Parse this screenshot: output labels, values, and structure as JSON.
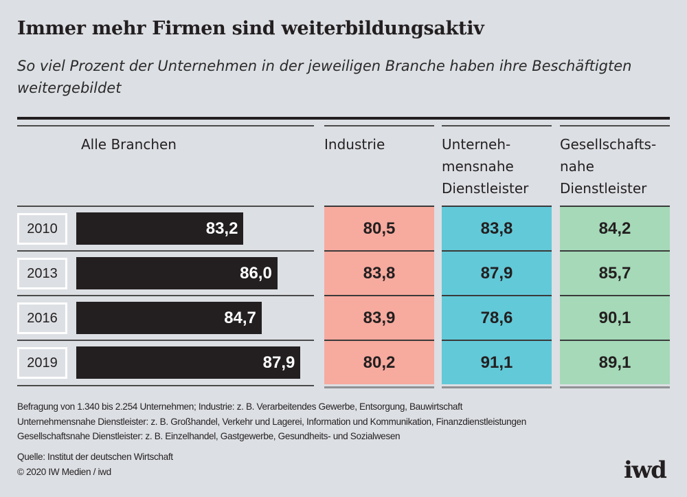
{
  "title": "Immer mehr Firmen sind weiterbildungsaktiv",
  "subtitle": "So viel Prozent der Unternehmen in der jeweiligen Branche haben ihre Beschäftigten weitergebildet",
  "colors": {
    "background": "#dcdfe3",
    "bar": "#231f20",
    "industrie": "#f7aa9e",
    "unternehmensnahe": "#62c9d8",
    "gesellschaftsnahe": "#a5d9b8"
  },
  "chart_data": {
    "type": "table",
    "categories": [
      "2010",
      "2013",
      "2016",
      "2019"
    ],
    "columns": [
      "Alle Branchen",
      "Industrie",
      "Unternehmensnahe Dienstleister",
      "Gesellschaftsnahe Dienstleister"
    ],
    "column_headers": [
      [
        "Alle Branchen"
      ],
      [
        "Industrie"
      ],
      [
        "Unterneh-",
        "mensnahe",
        "Dienstleister"
      ],
      [
        "Gesellschafts-",
        "nahe",
        "Dienstleister"
      ]
    ],
    "series": [
      {
        "name": "Alle Branchen",
        "values": [
          83.2,
          86.0,
          84.7,
          87.9
        ],
        "labels": [
          "83,2",
          "86,0",
          "84,7",
          "87,9"
        ],
        "display": "bar"
      },
      {
        "name": "Industrie",
        "values": [
          80.5,
          83.8,
          83.9,
          80.2
        ],
        "labels": [
          "80,5",
          "83,8",
          "83,9",
          "80,2"
        ],
        "display": "cell"
      },
      {
        "name": "Unternehmensnahe Dienstleister",
        "values": [
          83.8,
          87.9,
          78.6,
          91.1
        ],
        "labels": [
          "83,8",
          "87,9",
          "78,6",
          "91,1"
        ],
        "display": "cell"
      },
      {
        "name": "Gesellschaftsnahe Dienstleister",
        "values": [
          84.2,
          85.7,
          90.1,
          89.1
        ],
        "labels": [
          "84,2",
          "85,7",
          "90,1",
          "89,1"
        ],
        "display": "cell"
      }
    ],
    "bar_xlim": [
      69.4,
      88.9
    ]
  },
  "footnotes": [
    "Befragung von 1.340 bis 2.254 Unternehmen; Industrie: z. B. Verarbeitendes Gewerbe, Entsorgung, Bauwirtschaft",
    "Unternehmensnahe Dienstleister: z. B. Großhandel, Verkehr und Lagerei, Information und Kommunikation, Finanzdienstleistungen",
    "Gesellschaftsnahe Dienstleister: z. B. Einzelhandel, Gastgewerbe, Gesundheits- und Sozialwesen"
  ],
  "source": "Quelle: Institut der deutschen Wirtschaft",
  "copyright": "© 2020 IW Medien / iwd",
  "logo": "iwd"
}
